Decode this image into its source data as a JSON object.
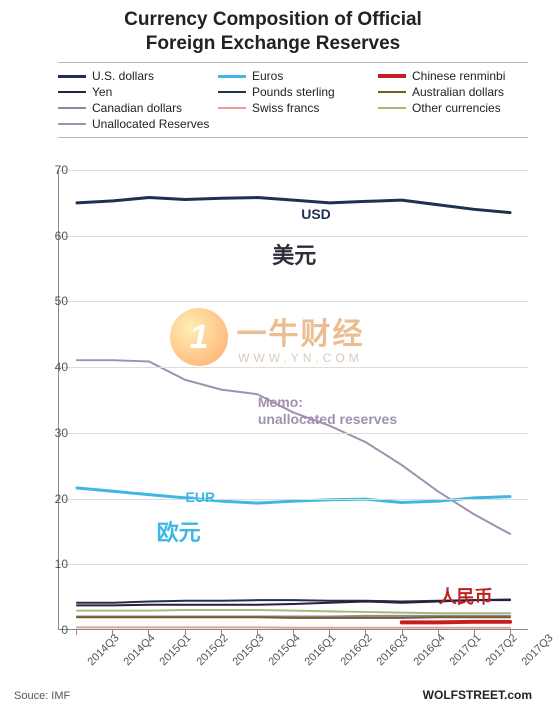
{
  "title_line1": "Currency Composition of Official",
  "title_line2": "Foreign Exchange Reserves",
  "footer_left": "Souce: IMF",
  "footer_right": "WOLFSTREET.com",
  "watermark": {
    "logo_char": "1",
    "zh": "一牛财经",
    "url": "WWW.YN.COM"
  },
  "legend": [
    {
      "label": "U.S. dollars",
      "color": "#1f3050",
      "width": 3
    },
    {
      "label": "Euros",
      "color": "#3db7e4",
      "width": 3
    },
    {
      "label": "Chinese renminbi",
      "color": "#c22020",
      "width": 4
    },
    {
      "label": "Yen",
      "color": "#2b1f3a",
      "width": 2
    },
    {
      "label": "Pounds sterling",
      "color": "#1f3050",
      "width": 2
    },
    {
      "label": "Australian dollars",
      "color": "#7a5a2a",
      "width": 2
    },
    {
      "label": "Canadian dollars",
      "color": "#8a8aa0",
      "width": 2
    },
    {
      "label": "Swiss francs",
      "color": "#e4a0a0",
      "width": 2
    },
    {
      "label": "Other currencies",
      "color": "#a8b87a",
      "width": 2
    },
    {
      "label": "Unallocated Reserves",
      "color": "#a090b0",
      "width": 2
    }
  ],
  "chart": {
    "type": "line",
    "plot_background": "#ffffff",
    "grid_color": "#dddddd",
    "axis_color": "#888888",
    "ylim": [
      0,
      70
    ],
    "ytick_step": 10,
    "categories": [
      "2014Q3",
      "2014Q4",
      "2015Q1",
      "2015Q2",
      "2015Q3",
      "2015Q4",
      "2016Q1",
      "2016Q2",
      "2016Q3",
      "2016Q4",
      "2017Q1",
      "2017Q2",
      "2017Q3"
    ],
    "series": [
      {
        "name": "U.S. dollars",
        "color": "#1f3050",
        "width": 3,
        "values": [
          65.0,
          65.3,
          65.8,
          65.5,
          65.7,
          65.8,
          65.4,
          65.0,
          65.2,
          65.4,
          64.7,
          64.0,
          63.5
        ]
      },
      {
        "name": "Unallocated Reserves",
        "color": "#a090b0",
        "width": 2,
        "values": [
          41.0,
          41.0,
          40.8,
          38.0,
          36.5,
          35.8,
          33.0,
          31.0,
          28.5,
          25.0,
          21.0,
          17.5,
          14.5
        ]
      },
      {
        "name": "Euros",
        "color": "#3db7e4",
        "width": 3,
        "values": [
          21.5,
          21.0,
          20.5,
          20.0,
          19.5,
          19.2,
          19.5,
          19.7,
          19.8,
          19.3,
          19.5,
          20.0,
          20.2
        ]
      },
      {
        "name": "Pounds sterling",
        "color": "#1f3050",
        "width": 2,
        "values": [
          4.0,
          4.0,
          4.2,
          4.3,
          4.3,
          4.4,
          4.4,
          4.3,
          4.3,
          4.2,
          4.3,
          4.4,
          4.5
        ]
      },
      {
        "name": "Yen",
        "color": "#2b1f3a",
        "width": 2,
        "values": [
          3.6,
          3.6,
          3.7,
          3.7,
          3.7,
          3.7,
          3.8,
          4.0,
          4.2,
          4.0,
          4.2,
          4.4,
          4.4
        ]
      },
      {
        "name": "Other currencies",
        "color": "#a8b87a",
        "width": 2,
        "values": [
          2.8,
          2.8,
          2.8,
          2.9,
          2.9,
          2.9,
          2.8,
          2.7,
          2.6,
          2.5,
          2.4,
          2.4,
          2.4
        ]
      },
      {
        "name": "Canadian dollars",
        "color": "#8a8aa0",
        "width": 2,
        "values": [
          1.9,
          1.9,
          1.9,
          1.9,
          1.9,
          1.9,
          1.9,
          1.9,
          2.0,
          2.0,
          2.0,
          2.0,
          2.0
        ]
      },
      {
        "name": "Australian dollars",
        "color": "#7a5a2a",
        "width": 2,
        "values": [
          1.8,
          1.8,
          1.8,
          1.8,
          1.8,
          1.8,
          1.7,
          1.7,
          1.7,
          1.7,
          1.8,
          1.8,
          1.8
        ]
      },
      {
        "name": "Chinese renminbi",
        "color": "#c22020",
        "width": 4,
        "values": [
          null,
          null,
          null,
          null,
          null,
          null,
          null,
          null,
          null,
          1.0,
          1.0,
          1.1,
          1.1
        ]
      },
      {
        "name": "Swiss francs",
        "color": "#e4a0a0",
        "width": 2,
        "values": [
          0.25,
          0.25,
          0.25,
          0.25,
          0.25,
          0.25,
          0.2,
          0.2,
          0.2,
          0.2,
          0.2,
          0.2,
          0.2
        ]
      }
    ],
    "annotations": [
      {
        "text": "USD",
        "x_index": 6.2,
        "y": 63.5,
        "color": "#1f3050",
        "fontsize": 14,
        "weight": "bold"
      },
      {
        "text": "美元",
        "x_index": 5.4,
        "y": 58.0,
        "color": "#2d2d3a",
        "fontsize": 22,
        "weight": "bold"
      },
      {
        "text": "Memo:",
        "x_index": 5.0,
        "y": 34.8,
        "color": "#a090b0",
        "fontsize": 14,
        "weight": "bold"
      },
      {
        "text": "unallocated reserves",
        "x_index": 5.0,
        "y": 32.2,
        "color": "#a090b0",
        "fontsize": 14,
        "weight": "bold"
      },
      {
        "text": "EUR",
        "x_index": 3.0,
        "y": 20.4,
        "color": "#3db7e4",
        "fontsize": 14,
        "weight": "bold"
      },
      {
        "text": "欧元",
        "x_index": 2.2,
        "y": 15.8,
        "color": "#3db7e4",
        "fontsize": 22,
        "weight": "bold"
      },
      {
        "text": "人民币",
        "x_index": 10.0,
        "y": 5.8,
        "color": "#c22020",
        "fontsize": 18,
        "weight": "bold"
      }
    ]
  }
}
